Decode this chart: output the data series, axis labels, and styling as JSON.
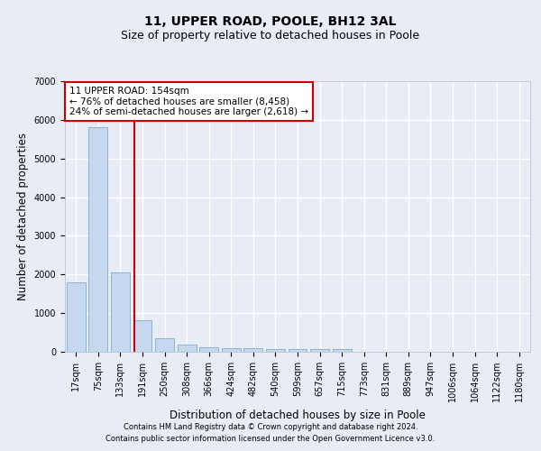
{
  "title1": "11, UPPER ROAD, POOLE, BH12 3AL",
  "title2": "Size of property relative to detached houses in Poole",
  "xlabel": "Distribution of detached houses by size in Poole",
  "ylabel": "Number of detached properties",
  "categories": [
    "17sqm",
    "75sqm",
    "133sqm",
    "191sqm",
    "250sqm",
    "308sqm",
    "366sqm",
    "424sqm",
    "482sqm",
    "540sqm",
    "599sqm",
    "657sqm",
    "715sqm",
    "773sqm",
    "831sqm",
    "889sqm",
    "947sqm",
    "1006sqm",
    "1064sqm",
    "1122sqm",
    "1180sqm"
  ],
  "values": [
    1800,
    5800,
    2050,
    820,
    340,
    190,
    110,
    100,
    90,
    70,
    60,
    60,
    60,
    0,
    0,
    0,
    0,
    0,
    0,
    0,
    0
  ],
  "bar_color": "#c5d8f0",
  "bar_edge_color": "#7aadd4",
  "vline_x": 2.62,
  "vline_color": "#cc0000",
  "annotation_text": "11 UPPER ROAD: 154sqm\n← 76% of detached houses are smaller (8,458)\n24% of semi-detached houses are larger (2,618) →",
  "annotation_box_color": "#cc0000",
  "ylim": [
    0,
    7000
  ],
  "yticks": [
    0,
    1000,
    2000,
    3000,
    4000,
    5000,
    6000,
    7000
  ],
  "bg_color": "#e8edf5",
  "plot_bg_color": "#e8edf5",
  "footer1": "Contains HM Land Registry data © Crown copyright and database right 2024.",
  "footer2": "Contains public sector information licensed under the Open Government Licence v3.0.",
  "grid_color": "#ffffff",
  "title_fontsize": 10,
  "subtitle_fontsize": 9,
  "axis_label_fontsize": 8.5,
  "tick_fontsize": 7,
  "annotation_fontsize": 7.5,
  "footer_fontsize": 6
}
